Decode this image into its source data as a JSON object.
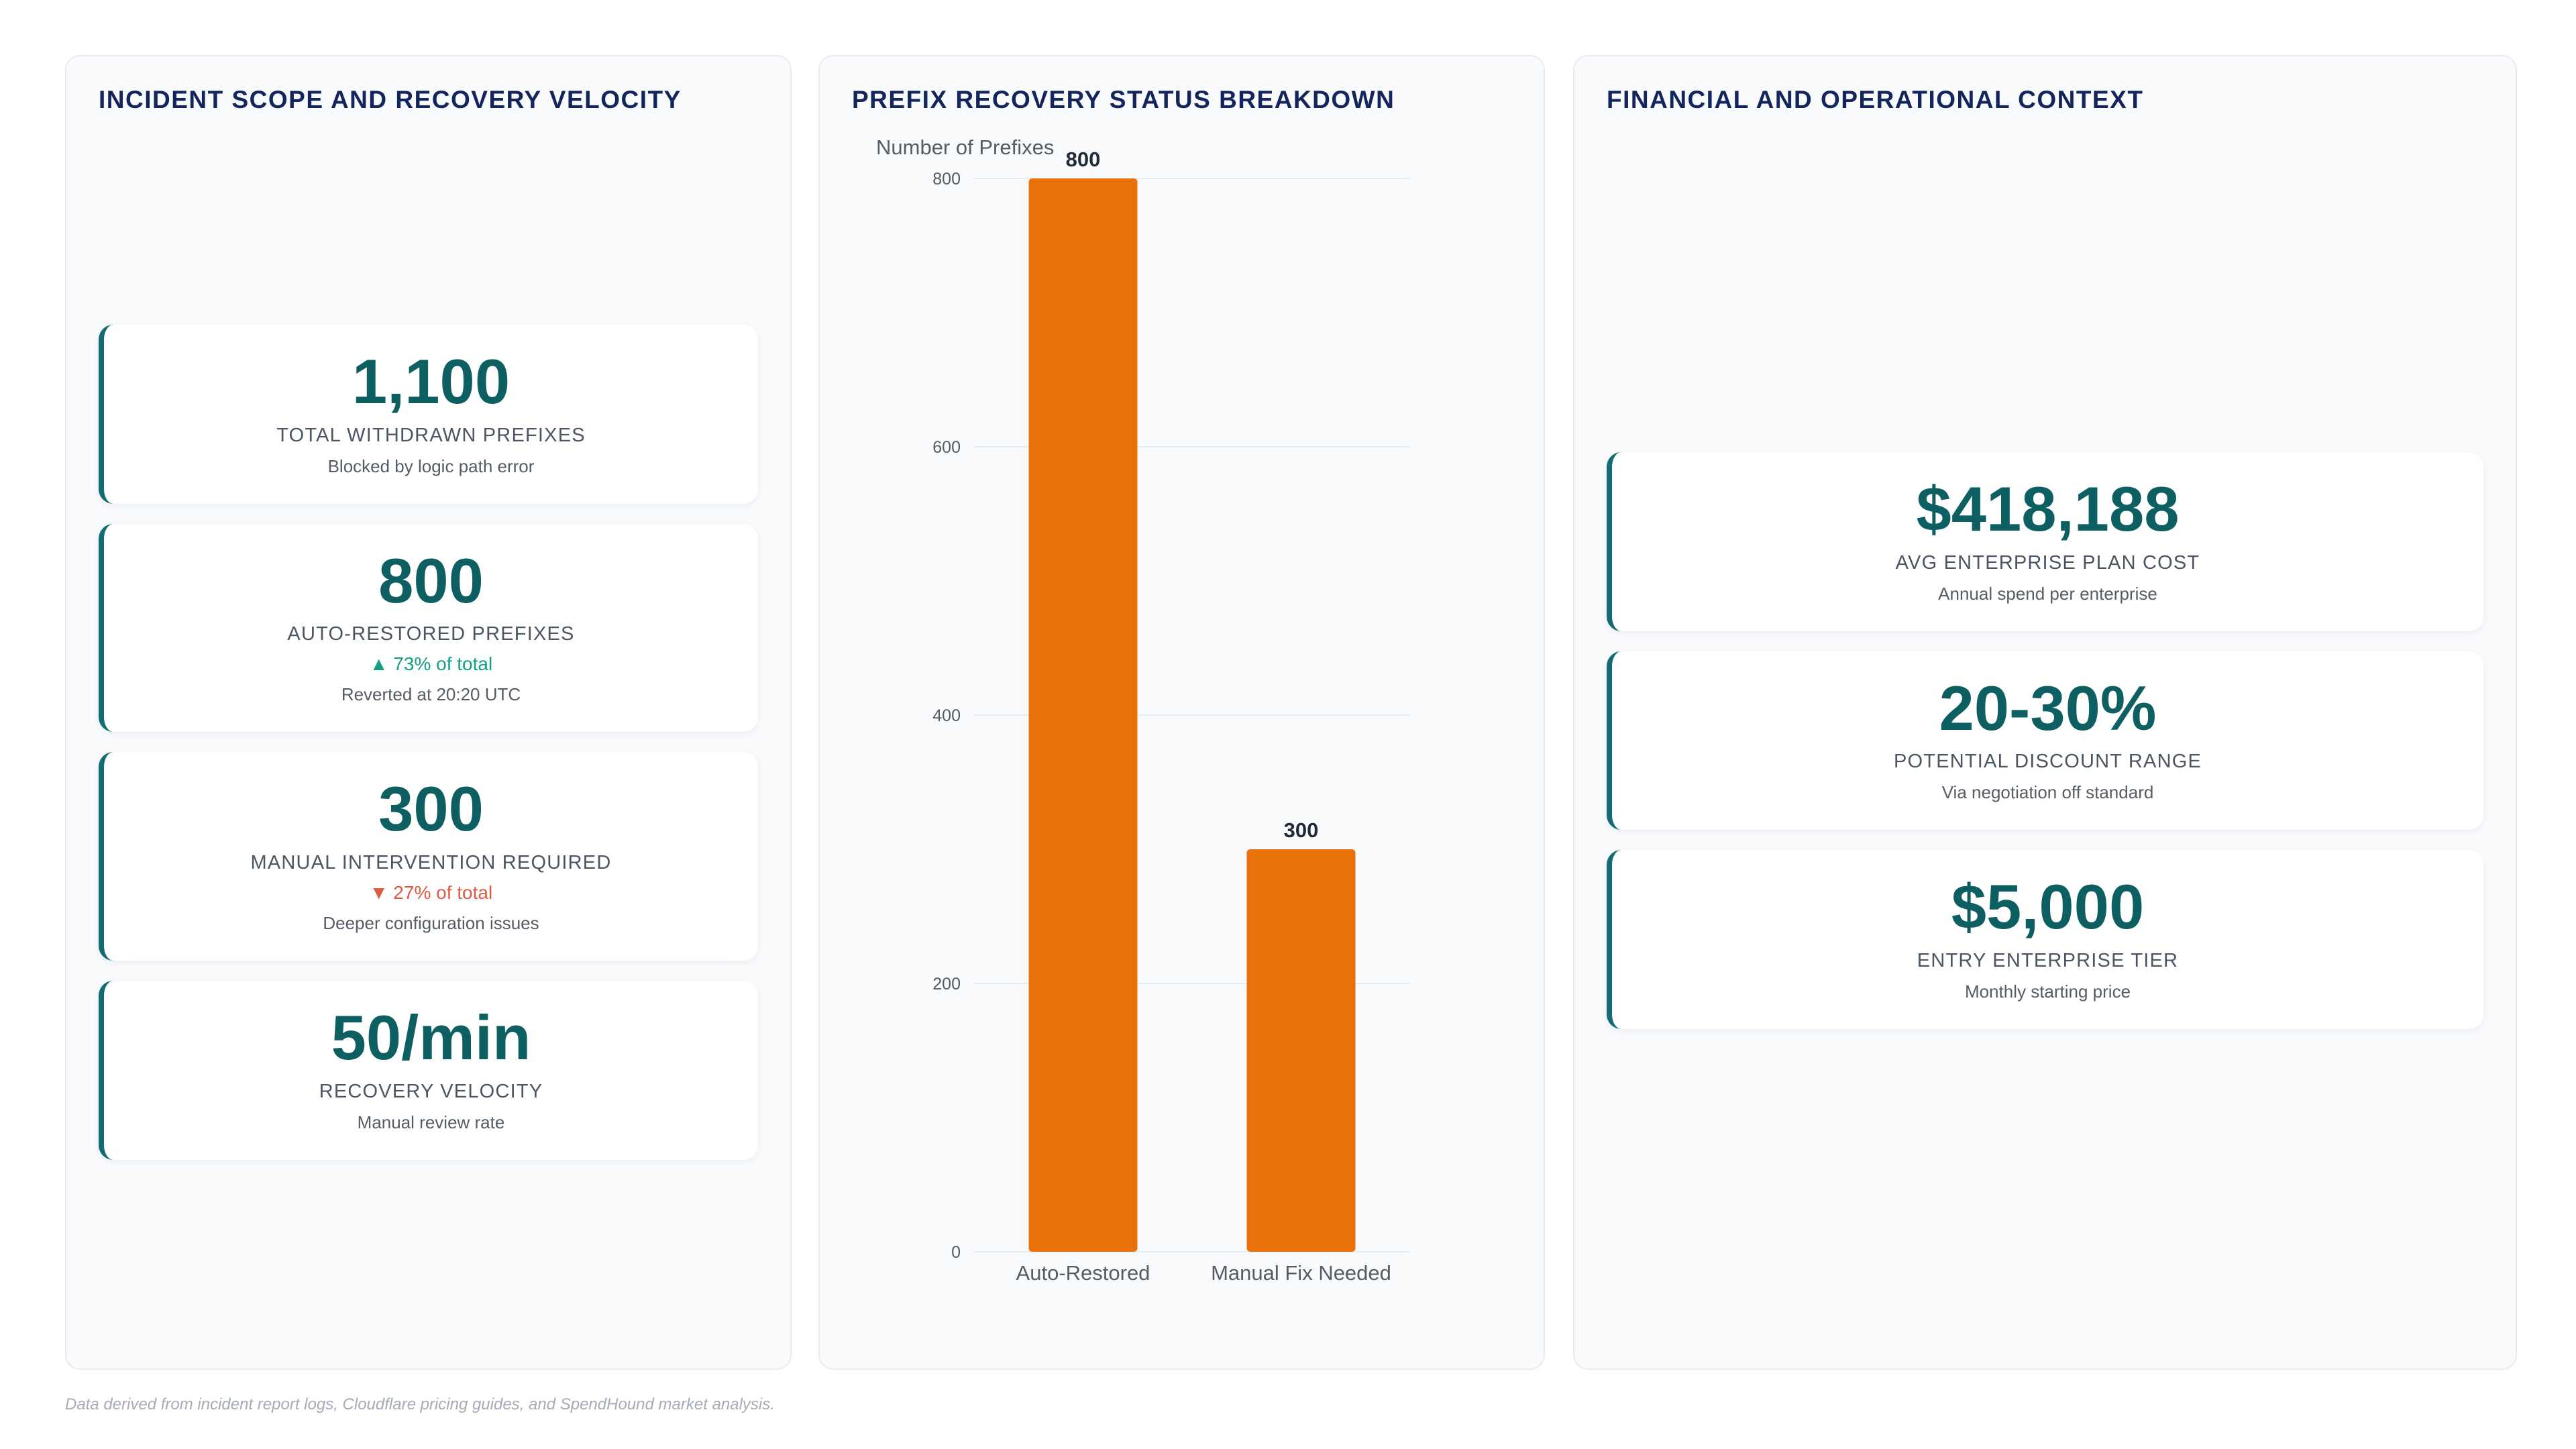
{
  "panels": {
    "left": {
      "title": "INCIDENT SCOPE AND RECOVERY VELOCITY",
      "cards": [
        {
          "value": "1,100",
          "label": "TOTAL WITHDRAWN PREFIXES",
          "delta": "",
          "sub": "Blocked by logic path error"
        },
        {
          "value": "800",
          "label": "AUTO-RESTORED PREFIXES",
          "delta": "▲ 73% of total",
          "sub": "Reverted at 20:20 UTC"
        },
        {
          "value": "300",
          "label": "MANUAL INTERVENTION REQUIRED",
          "delta": "▼ 27% of total",
          "sub": "Deeper configuration issues"
        },
        {
          "value": "50/min",
          "label": "RECOVERY VELOCITY",
          "delta": "",
          "sub": "Manual review rate"
        }
      ]
    },
    "middle": {
      "title": "PREFIX RECOVERY STATUS BREAKDOWN"
    },
    "right": {
      "title": "FINANCIAL AND OPERATIONAL CONTEXT",
      "cards": [
        {
          "value": "$418,188",
          "label": "AVG ENTERPRISE PLAN COST",
          "sub": "Annual spend per enterprise"
        },
        {
          "value": "20-30%",
          "label": "POTENTIAL DISCOUNT RANGE",
          "sub": "Via negotiation off standard"
        },
        {
          "value": "$5,000",
          "label": "ENTRY ENTERPRISE TIER",
          "sub": "Monthly starting price"
        }
      ]
    }
  },
  "chart_data": {
    "type": "bar",
    "title": "",
    "xlabel": "",
    "ylabel": "Number of Prefixes",
    "categories": [
      "Auto-Restored",
      "Manual Fix Needed"
    ],
    "values": [
      800,
      300
    ],
    "data_labels": [
      "800",
      "300"
    ],
    "ylim": [
      0,
      800
    ],
    "yticks": [
      0,
      200,
      400,
      600,
      800
    ],
    "grid": true,
    "legend": "none",
    "bar_color": "#e8710a"
  },
  "colors": {
    "title": "#14245c",
    "kpi_value": "#0e5f62",
    "accent_border": "#136b73",
    "delta_up": "#14a085",
    "delta_down": "#e05a44",
    "bar": "#e8710a"
  },
  "footnote": "Data derived from incident report logs, Cloudflare pricing guides, and SpendHound market analysis."
}
